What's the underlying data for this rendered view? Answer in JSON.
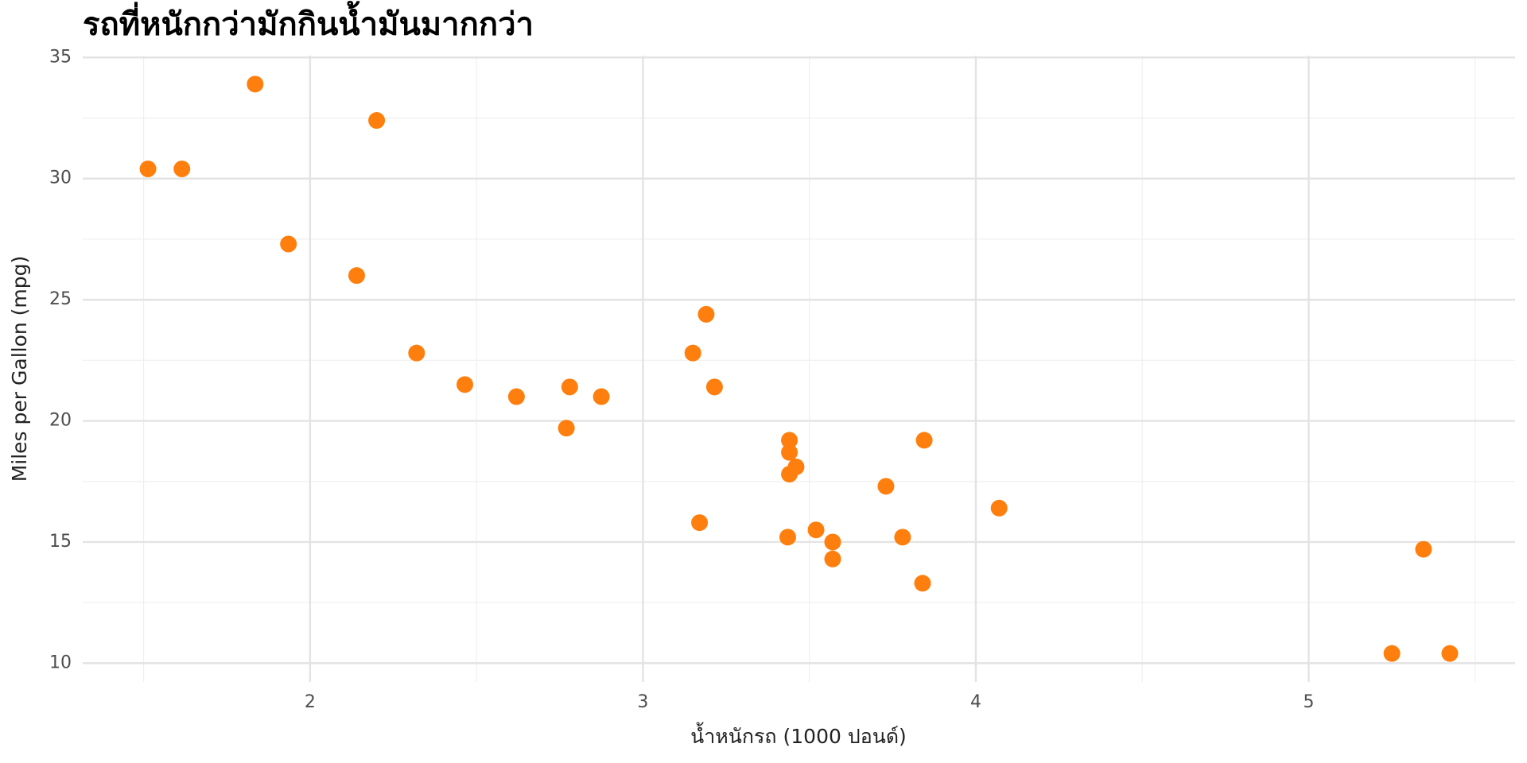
{
  "chart_data": {
    "type": "scatter",
    "title": "รถที่หนักกว่ามักกินน้ำมันมากกว่า",
    "x_label": "น้ำหนักรถ (1000 ปอนด์)",
    "y_label": "Miles per Gallon (mpg)",
    "x": [
      2.62,
      2.875,
      2.32,
      3.215,
      3.44,
      3.46,
      3.57,
      3.19,
      3.15,
      3.44,
      3.44,
      4.07,
      3.73,
      3.78,
      5.25,
      5.424,
      5.345,
      2.2,
      1.615,
      1.835,
      2.465,
      3.52,
      3.435,
      3.84,
      3.845,
      1.935,
      2.14,
      1.513,
      3.17,
      2.77,
      3.57,
      2.78
    ],
    "values": [
      21.0,
      21.0,
      22.8,
      21.4,
      18.7,
      18.1,
      14.3,
      24.4,
      22.8,
      19.2,
      17.8,
      16.4,
      17.3,
      15.2,
      10.4,
      10.4,
      14.7,
      32.4,
      30.4,
      33.9,
      21.5,
      15.5,
      15.2,
      13.3,
      19.2,
      27.3,
      26.0,
      30.4,
      15.8,
      19.7,
      15.0,
      21.4
    ],
    "color": "#ff7f0e",
    "xlim": [
      1.317,
      5.62
    ],
    "ylim": [
      9.225,
      35.075
    ],
    "xticks": [
      2,
      3,
      4,
      5
    ],
    "yticks": [
      10,
      15,
      20,
      25,
      30,
      35
    ],
    "xminorticks": [
      1.5,
      2.5,
      3.5,
      4.5,
      5.5
    ],
    "yminorticks": [
      12.5,
      17.5,
      22.5,
      27.5,
      32.5
    ],
    "grid": true
  }
}
